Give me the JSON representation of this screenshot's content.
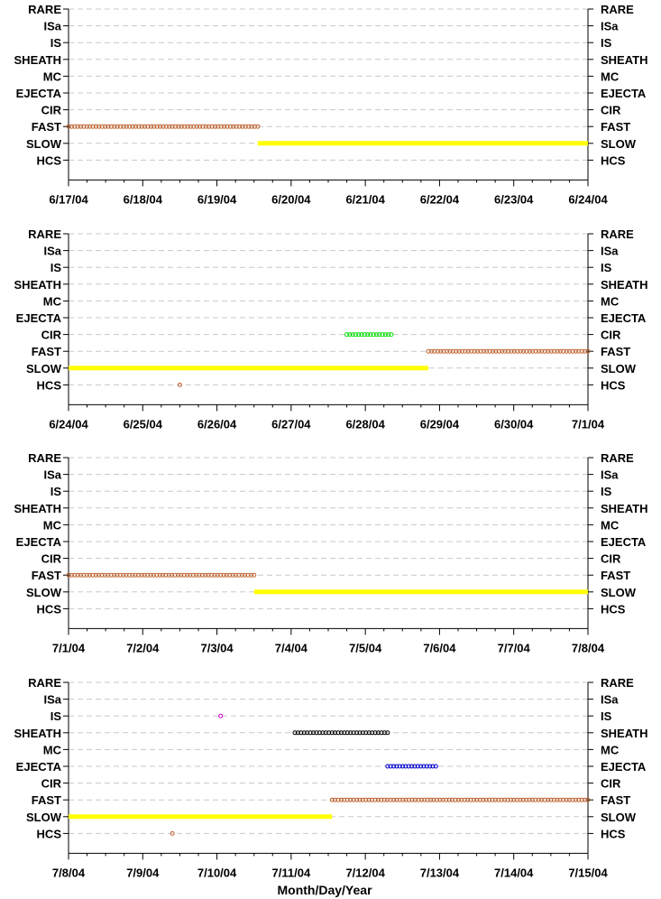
{
  "chart_data": {
    "type": "scatter",
    "xlabel": "Month/Day/Year",
    "categories_y": [
      "RARE",
      "ISa",
      "IS",
      "SHEATH",
      "MC",
      "EJECTA",
      "CIR",
      "FAST",
      "SLOW",
      "HCS"
    ],
    "grid": "horizontal dashed",
    "panels": [
      {
        "xlim": [
          "6/17/04",
          "6/24/04"
        ],
        "x_ticks": [
          "6/17/04",
          "6/18/04",
          "6/19/04",
          "6/20/04",
          "6/21/04",
          "6/22/04",
          "6/23/04",
          "6/24/04"
        ],
        "segments": [
          {
            "category": "FAST",
            "color": "#c0602b",
            "style": "open-circle",
            "start_day": 0.0,
            "end_day": 2.55
          },
          {
            "category": "SLOW",
            "color": "#ffff00",
            "style": "filled",
            "start_day": 2.55,
            "end_day": 7.0
          }
        ]
      },
      {
        "xlim": [
          "6/24/04",
          "7/1/04"
        ],
        "x_ticks": [
          "6/24/04",
          "6/25/04",
          "6/26/04",
          "6/27/04",
          "6/28/04",
          "6/29/04",
          "6/30/04",
          "7/1/04"
        ],
        "segments": [
          {
            "category": "SLOW",
            "color": "#ffff00",
            "style": "filled",
            "start_day": 0.0,
            "end_day": 4.85
          },
          {
            "category": "HCS",
            "color": "#c0602b",
            "style": "open-circle",
            "start_day": 1.5,
            "end_day": 1.5
          },
          {
            "category": "CIR",
            "color": "#00dd00",
            "style": "open-circle",
            "start_day": 3.75,
            "end_day": 4.35
          },
          {
            "category": "FAST",
            "color": "#c0602b",
            "style": "open-circle",
            "start_day": 4.85,
            "end_day": 7.0
          }
        ]
      },
      {
        "xlim": [
          "7/1/04",
          "7/8/04"
        ],
        "x_ticks": [
          "7/1/04",
          "7/2/04",
          "7/3/04",
          "7/4/04",
          "7/5/04",
          "7/6/04",
          "7/7/04",
          "7/8/04"
        ],
        "segments": [
          {
            "category": "FAST",
            "color": "#c0602b",
            "style": "open-circle",
            "start_day": 0.0,
            "end_day": 2.5
          },
          {
            "category": "SLOW",
            "color": "#ffff00",
            "style": "filled",
            "start_day": 2.5,
            "end_day": 7.0
          }
        ]
      },
      {
        "xlim": [
          "7/8/04",
          "7/15/04"
        ],
        "x_ticks": [
          "7/8/04",
          "7/9/04",
          "7/10/04",
          "7/11/04",
          "7/12/04",
          "7/13/04",
          "7/14/04",
          "7/15/04"
        ],
        "segments": [
          {
            "category": "SLOW",
            "color": "#ffff00",
            "style": "filled",
            "start_day": 0.0,
            "end_day": 3.55
          },
          {
            "category": "HCS",
            "color": "#c0602b",
            "style": "open-circle",
            "start_day": 1.4,
            "end_day": 1.4
          },
          {
            "category": "IS",
            "color": "#cc00cc",
            "style": "open-circle",
            "start_day": 2.05,
            "end_day": 2.05
          },
          {
            "category": "SHEATH",
            "color": "#000000",
            "style": "open-circle",
            "start_day": 3.05,
            "end_day": 4.3
          },
          {
            "category": "EJECTA",
            "color": "#0000cc",
            "style": "open-circle",
            "start_day": 4.3,
            "end_day": 4.95
          },
          {
            "category": "FAST",
            "color": "#c0602b",
            "style": "open-circle",
            "start_day": 3.55,
            "end_day": 7.0
          }
        ]
      }
    ]
  }
}
